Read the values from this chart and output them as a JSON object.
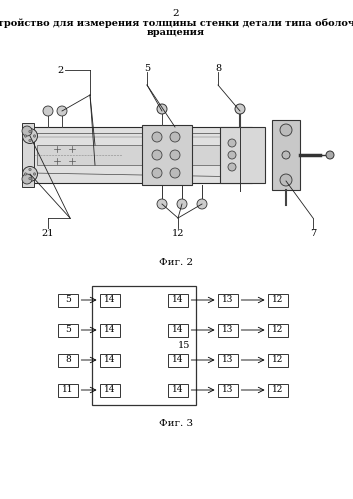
{
  "page_number": "2",
  "title_line1": "Устройство для измерения толщины стенки детали типа оболочка",
  "title_line2": "вращения",
  "fig2_caption": "Фиг. 2",
  "fig3_caption": "Фиг. 3",
  "bg_color": "#ffffff",
  "fig2": {
    "labels": [
      "2",
      "5",
      "8",
      "21",
      "12",
      "7"
    ],
    "label_top_x": [
      90,
      155,
      220,
      50,
      178,
      315
    ],
    "label_top_y": [
      73,
      73,
      73,
      230,
      230,
      230
    ],
    "label_anchor_x": [
      95,
      150,
      242,
      68,
      188,
      298
    ],
    "label_anchor_y": [
      135,
      138,
      148,
      192,
      218,
      192
    ]
  },
  "fig3": {
    "row_labels": [
      "5",
      "5",
      "8",
      "11"
    ],
    "center_label": "15",
    "rows": 4
  }
}
